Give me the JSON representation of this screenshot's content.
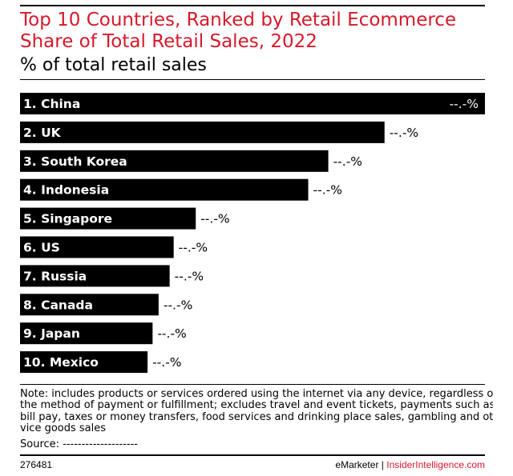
{
  "chart_data": {
    "type": "bar",
    "orientation": "horizontal",
    "title": "Top 10 Countries, Ranked by Retail Ecommerce Share of Total Retail Sales, 2022",
    "subtitle": "% of total retail sales",
    "categories": [
      "1. China",
      "2. UK",
      "3. South Korea",
      "4. Indonesia",
      "5. Singapore",
      "6. US",
      "7. Russia",
      "8. Canada",
      "9. Japan",
      "10. Mexico"
    ],
    "values": [
      46.3,
      36.3,
      30.7,
      28.7,
      17.5,
      15.3,
      14.9,
      13.8,
      13.2,
      12.7
    ],
    "value_labels": [
      "--.-%",
      "--.-%",
      "--.-%",
      "--.-%",
      "--.-%",
      "--.-%",
      "--.-%",
      "--.-%",
      "--.-%",
      "--.-%"
    ],
    "xlim": [
      0,
      46.3
    ],
    "grid": false,
    "legend": "none",
    "bar_color": "#000000"
  },
  "colors": {
    "title": "#d7192b",
    "bar": "#000000",
    "brand": "#d7192b"
  },
  "note_lines": [
    "Note: includes products or services ordered using the internet via any device, regardless of",
    "the method of payment or fulfillment; excludes travel and event tickets, payments such as",
    "bill pay, taxes or money transfers, food services and drinking place sales, gambling and other",
    "vice goods sales"
  ],
  "source": "Source: --------------------",
  "footer": {
    "id": "276481",
    "brand": "eMarketer",
    "separator": "|",
    "brand2": "InsiderIntelligence.com"
  }
}
